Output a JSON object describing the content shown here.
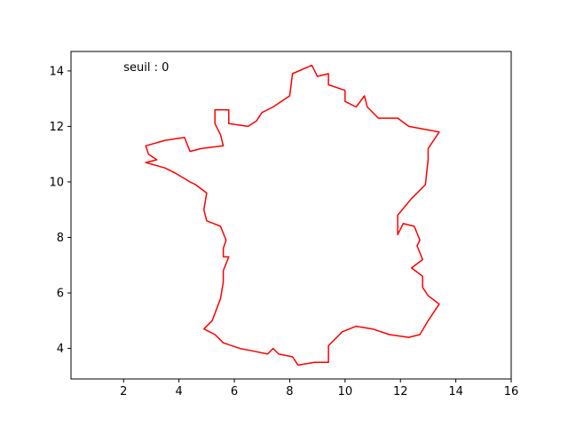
{
  "chart_data": {
    "type": "line",
    "title": "",
    "xlabel": "",
    "ylabel": "",
    "xlim": [
      0.1,
      16
    ],
    "ylim": [
      2.9,
      14.7
    ],
    "xticks": [
      2,
      4,
      6,
      8,
      10,
      12,
      14,
      16
    ],
    "yticks": [
      4,
      6,
      8,
      10,
      12,
      14
    ],
    "grid": false,
    "annotation": "seuil : 0",
    "series": [
      {
        "color": "#ff0000",
        "x": [
          8.8,
          9.0,
          9.4,
          9.4,
          9.7,
          10.0,
          10.0,
          10.4,
          10.7,
          10.8,
          11.2,
          11.9,
          12.3,
          13.4,
          13.0,
          13.0,
          12.9,
          12.4,
          11.9,
          11.9,
          12.1,
          12.5,
          12.7,
          12.6,
          12.8,
          12.4,
          12.8,
          12.8,
          13.0,
          13.4,
          13.0,
          12.7,
          12.3,
          11.6,
          11.0,
          10.4,
          9.9,
          9.4,
          9.4,
          8.9,
          8.3,
          8.1,
          7.6,
          7.4,
          7.2,
          6.7,
          6.2,
          5.6,
          5.3,
          4.9,
          5.2,
          5.5,
          5.6,
          5.6,
          5.8,
          5.6,
          5.6,
          5.7,
          5.5,
          5.0,
          4.9,
          5.0,
          4.6,
          4.4,
          3.9,
          3.5,
          2.8,
          3.2,
          2.9,
          2.8,
          3.5,
          4.2,
          4.4,
          4.8,
          5.6,
          5.5,
          5.3,
          5.3,
          5.8,
          5.8,
          6.5,
          6.8,
          7.0,
          7.4,
          7.7,
          8.0,
          8.1,
          8.8
        ],
        "y": [
          14.2,
          13.8,
          13.9,
          13.5,
          13.4,
          13.3,
          12.9,
          12.7,
          13.1,
          12.7,
          12.3,
          12.3,
          12.0,
          11.8,
          11.2,
          10.8,
          9.9,
          9.4,
          8.8,
          8.1,
          8.5,
          8.4,
          7.9,
          7.7,
          7.2,
          6.9,
          6.6,
          6.2,
          5.9,
          5.6,
          5.0,
          4.5,
          4.4,
          4.5,
          4.7,
          4.8,
          4.6,
          4.1,
          3.5,
          3.5,
          3.4,
          3.7,
          3.8,
          4.0,
          3.8,
          3.9,
          4.0,
          4.2,
          4.5,
          4.7,
          5.0,
          5.8,
          6.4,
          6.8,
          7.3,
          7.3,
          7.6,
          7.9,
          8.4,
          8.6,
          9.0,
          9.6,
          9.9,
          10.0,
          10.3,
          10.5,
          10.7,
          10.8,
          11.0,
          11.3,
          11.5,
          11.6,
          11.1,
          11.2,
          11.3,
          11.7,
          12.1,
          12.6,
          12.6,
          12.1,
          12.0,
          12.2,
          12.5,
          12.7,
          12.9,
          13.1,
          13.9,
          14.2
        ]
      }
    ]
  }
}
